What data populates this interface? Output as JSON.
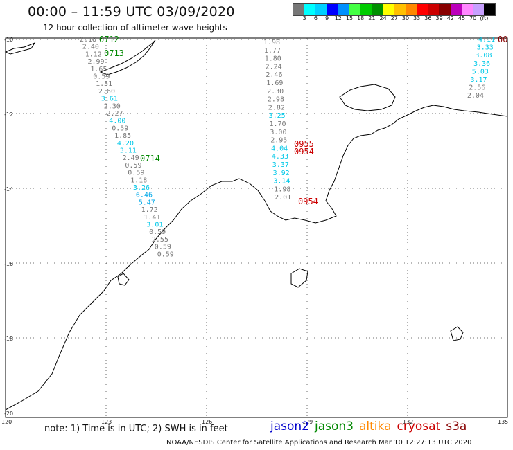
{
  "title": "00:00 – 11:59 UTC 03/09/2020",
  "subtitle": "12 hour collection of altimeter wave heights",
  "colorbar": {
    "colors": [
      "#777777",
      "#00ffff",
      "#00d0ff",
      "#0000ff",
      "#0090ff",
      "#44ff44",
      "#00cc00",
      "#009000",
      "#ffff00",
      "#ffc000",
      "#ff8800",
      "#ff0000",
      "#cc0000",
      "#880000",
      "#bb00bb",
      "#ff88ff",
      "#c8a0ff",
      "#000000"
    ],
    "labels": [
      "3",
      "6",
      "9",
      "12",
      "15",
      "18",
      "21",
      "24",
      "27",
      "30",
      "33",
      "36",
      "39",
      "42",
      "45",
      "70",
      "(ft)"
    ]
  },
  "axes": {
    "lat_labels": [
      "-10",
      "-12",
      "-14",
      "-16",
      "-18",
      "-20"
    ],
    "lon_labels": [
      "120",
      "123",
      "126",
      "129",
      "132",
      "135"
    ]
  },
  "times": [
    {
      "text": "0712",
      "color": "#008800"
    },
    {
      "text": "0713",
      "color": "#008800"
    },
    {
      "text": "0714",
      "color": "#008800"
    },
    {
      "text": "0955",
      "color": "#cc0000"
    },
    {
      "text": "0954",
      "color": "#cc0000"
    },
    {
      "text": "0954",
      "color": "#cc0000"
    },
    {
      "text": "00",
      "color": "#880000"
    }
  ],
  "tracks": {
    "track1": [
      {
        "v": "2.18",
        "c": "#777777"
      },
      {
        "v": "2.40",
        "c": "#777777"
      },
      {
        "v": "1.12",
        "c": "#777777"
      },
      {
        "v": "2.99",
        "c": "#777777"
      },
      {
        "v": "1.65",
        "c": "#777777"
      },
      {
        "v": "0.59",
        "c": "#777777"
      },
      {
        "v": "1.51",
        "c": "#777777"
      },
      {
        "v": "2.60",
        "c": "#777777"
      },
      {
        "v": "3.61",
        "c": "#00c8e8"
      },
      {
        "v": "2.30",
        "c": "#777777"
      },
      {
        "v": "2.27",
        "c": "#777777"
      },
      {
        "v": "4.00",
        "c": "#00c8e8"
      },
      {
        "v": "0.59",
        "c": "#777777"
      },
      {
        "v": "1.85",
        "c": "#777777"
      },
      {
        "v": "4.20",
        "c": "#00c8e8"
      },
      {
        "v": "3.11",
        "c": "#00c8e8"
      },
      {
        "v": "2.49",
        "c": "#777777"
      },
      {
        "v": "0.59",
        "c": "#777777"
      },
      {
        "v": "0.59",
        "c": "#777777"
      },
      {
        "v": "1.18",
        "c": "#777777"
      },
      {
        "v": "3.26",
        "c": "#00c8e8"
      },
      {
        "v": "6.46",
        "c": "#00a8e8"
      },
      {
        "v": "5.47",
        "c": "#00a8e8"
      },
      {
        "v": "1.72",
        "c": "#777777"
      },
      {
        "v": "1.41",
        "c": "#777777"
      },
      {
        "v": "3.01",
        "c": "#00c8e8"
      },
      {
        "v": "0.59",
        "c": "#777777"
      },
      {
        "v": "2.55",
        "c": "#777777"
      },
      {
        "v": "0.59",
        "c": "#777777"
      },
      {
        "v": "0.59",
        "c": "#777777"
      }
    ],
    "track2": [
      {
        "v": "1.98",
        "c": "#777777"
      },
      {
        "v": "1.77",
        "c": "#777777"
      },
      {
        "v": "1.80",
        "c": "#777777"
      },
      {
        "v": "2.24",
        "c": "#777777"
      },
      {
        "v": "2.46",
        "c": "#777777"
      },
      {
        "v": "1.69",
        "c": "#777777"
      },
      {
        "v": "2.30",
        "c": "#777777"
      },
      {
        "v": "2.98",
        "c": "#777777"
      },
      {
        "v": "2.82",
        "c": "#777777"
      },
      {
        "v": "3.25",
        "c": "#00c8e8"
      },
      {
        "v": "1.70",
        "c": "#777777"
      },
      {
        "v": "3.00",
        "c": "#777777"
      },
      {
        "v": "2.95",
        "c": "#777777"
      },
      {
        "v": "4.04",
        "c": "#00c8e8"
      },
      {
        "v": "4.33",
        "c": "#00c8e8"
      },
      {
        "v": "3.37",
        "c": "#00c8e8"
      },
      {
        "v": "3.92",
        "c": "#00c8e8"
      },
      {
        "v": "3.14",
        "c": "#00c8e8"
      },
      {
        "v": "1.98",
        "c": "#777777"
      },
      {
        "v": "2.01",
        "c": "#777777"
      }
    ],
    "track3": [
      {
        "v": "4.11",
        "c": "#00c8e8"
      },
      {
        "v": "3.33",
        "c": "#00c8e8"
      },
      {
        "v": "3.08",
        "c": "#00c8e8"
      },
      {
        "v": "3.36",
        "c": "#00c8e8"
      },
      {
        "v": "5.03",
        "c": "#00c8e8"
      },
      {
        "v": "3.17",
        "c": "#00c8e8"
      },
      {
        "v": "2.56",
        "c": "#777777"
      },
      {
        "v": "2.04",
        "c": "#777777"
      }
    ]
  },
  "note": "note:  1) Time is in UTC;  2) SWH is in feet",
  "legend": [
    {
      "name": "jason2",
      "color": "#0000cc"
    },
    {
      "name": "jason3",
      "color": "#008800"
    },
    {
      "name": "altika",
      "color": "#ff8800"
    },
    {
      "name": "cryosat",
      "color": "#cc0000"
    },
    {
      "name": "s3a",
      "color": "#880000"
    }
  ],
  "credit": "NOAA/NESDIS Center for Satellite Applications and Research    Mar 10 12:27:13 UTC 2020"
}
